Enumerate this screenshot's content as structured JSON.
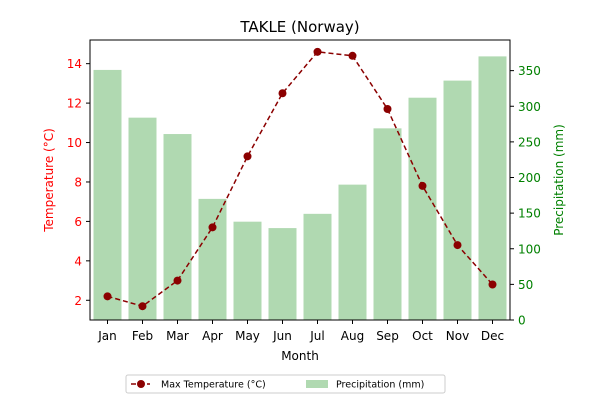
{
  "chart_data": {
    "type": "bar",
    "title": "TAKLE (Norway)",
    "xlabel": "Month",
    "ylabel_left": "Temperature (°C)",
    "ylabel_right": "Precipitation (mm)",
    "categories": [
      "Jan",
      "Feb",
      "Mar",
      "Apr",
      "May",
      "Jun",
      "Jul",
      "Aug",
      "Sep",
      "Oct",
      "Nov",
      "Dec"
    ],
    "series": [
      {
        "name": "Max Temperature (°C)",
        "type": "line",
        "axis": "left",
        "color": "#8b0000",
        "values": [
          2.2,
          1.7,
          3.0,
          5.7,
          9.3,
          12.5,
          14.6,
          14.4,
          11.7,
          7.8,
          4.8,
          2.8
        ]
      },
      {
        "name": "Precipitation (mm)",
        "type": "bar",
        "axis": "right",
        "color": "#b0d9b1",
        "values": [
          351,
          284,
          261,
          170,
          138,
          129,
          149,
          190,
          269,
          312,
          336,
          370
        ]
      }
    ],
    "ylim_left": [
      1.0,
      15.2
    ],
    "ylim_right": [
      0,
      393
    ],
    "yticks_left": [
      "2",
      "4",
      "6",
      "8",
      "10",
      "12",
      "14"
    ],
    "yticks_right": [
      "0",
      "50",
      "100",
      "150",
      "200",
      "250",
      "300",
      "350"
    ],
    "grid": false,
    "legend_position": "bottom-center",
    "colors": {
      "left_axis": "#ff0000",
      "right_axis": "#008000",
      "line": "#8b0000",
      "bars": "#b0d9b1"
    }
  }
}
